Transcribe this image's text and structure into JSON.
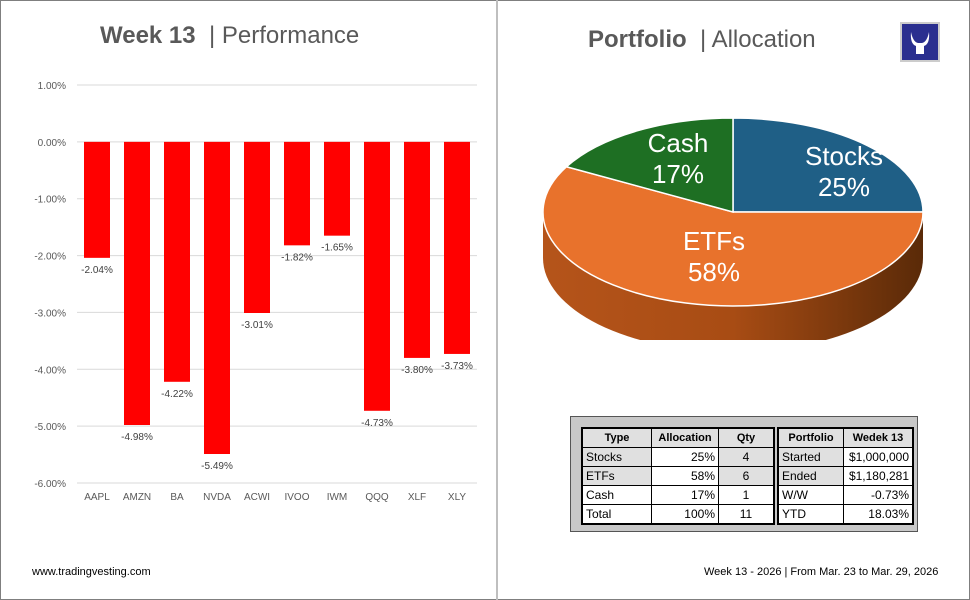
{
  "left": {
    "title_bold": "Week 13",
    "title_rest": "| Performance",
    "footer": "www.tradingvesting.com"
  },
  "right": {
    "title_bold": "Portfolio",
    "title_rest": "| Allocation",
    "footer": "Week 13 - 2026 | From Mar. 23 to Mar. 29, 2026"
  },
  "colors": {
    "bar": "#ff0000",
    "stocks": "#1f5f86",
    "etfs": "#e8722c",
    "cash": "#1e6f23",
    "logo": "#2a2f8f"
  },
  "chart_data": [
    {
      "type": "bar",
      "categories": [
        "AAPL",
        "AMZN",
        "BA",
        "NVDA",
        "ACWI",
        "IVOO",
        "IWM",
        "QQQ",
        "XLF",
        "XLY"
      ],
      "values": [
        -2.04,
        -4.98,
        -4.22,
        -5.49,
        -3.01,
        -1.82,
        -1.65,
        -4.73,
        -3.8,
        -3.73
      ],
      "data_labels": [
        "-2.04%",
        "-4.98%",
        "-4.22%",
        "-5.49%",
        "-3.01%",
        "-1.82%",
        "-1.65%",
        "-4.73%",
        "-3.80%",
        "-3.73%"
      ],
      "ylim": [
        -6,
        1
      ],
      "yticks": [
        "1.00%",
        "0.00%",
        "-1.00%",
        "-2.00%",
        "-3.00%",
        "-4.00%",
        "-5.00%",
        "-6.00%"
      ],
      "grid": true
    },
    {
      "type": "pie",
      "style": "3d",
      "categories": [
        "Stocks",
        "ETFs",
        "Cash"
      ],
      "values": [
        25,
        58,
        17
      ],
      "labels": [
        "25%",
        "58%",
        "17%"
      ]
    }
  ],
  "table1": {
    "headers": [
      "Type",
      "Allocation",
      "Qty"
    ],
    "rows": [
      [
        "Stocks",
        "25%",
        "4"
      ],
      [
        "ETFs",
        "58%",
        "6"
      ],
      [
        "Cash",
        "17%",
        "1"
      ],
      [
        "Total",
        "100%",
        "11"
      ]
    ]
  },
  "table2": {
    "headers": [
      "Portfolio",
      "Wedek 13"
    ],
    "rows": [
      [
        "Started",
        "$1,000,000"
      ],
      [
        "Ended",
        "$1,180,281"
      ],
      [
        "W/W",
        "-0.73%"
      ],
      [
        "YTD",
        "18.03%"
      ]
    ]
  }
}
